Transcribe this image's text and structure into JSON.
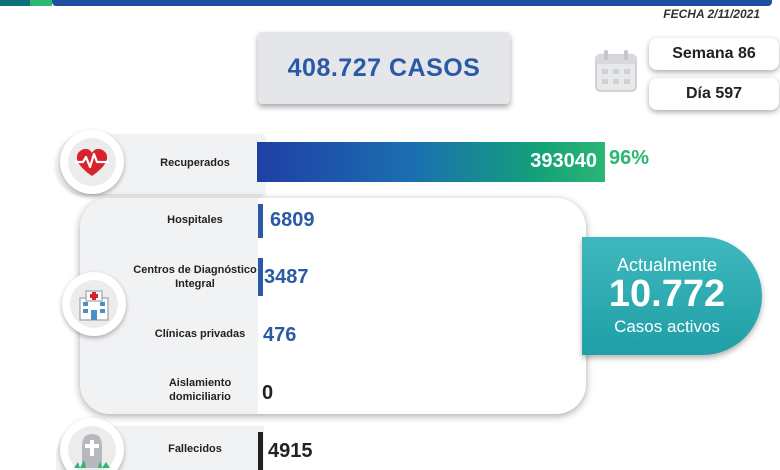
{
  "header": {
    "date": "FECHA 2/11/2021"
  },
  "summary": {
    "total_cases": "408.727 CASOS",
    "week": "Semana 86",
    "day": "Día 597"
  },
  "recovered": {
    "label": "Recuperados",
    "value": "393040",
    "percent": "96%"
  },
  "locations": [
    {
      "label": "Hospitales",
      "value": "6809"
    },
    {
      "label": "Centros de Diagnóstico Integral",
      "value": "3487"
    },
    {
      "label": "Clínicas privadas",
      "value": "476"
    },
    {
      "label": "Aislamiento domiciliario",
      "value": "0"
    }
  ],
  "active": {
    "line1": "Actualmente",
    "count": "10.772",
    "line2": "Casos activos"
  },
  "deaths": {
    "label": "Fallecidos",
    "value": "4915"
  },
  "colors": {
    "accent_blue": "#2a5aa6",
    "accent_green": "#2bb673",
    "teal": "#1f9fa6",
    "heart_red": "#d8232a"
  }
}
